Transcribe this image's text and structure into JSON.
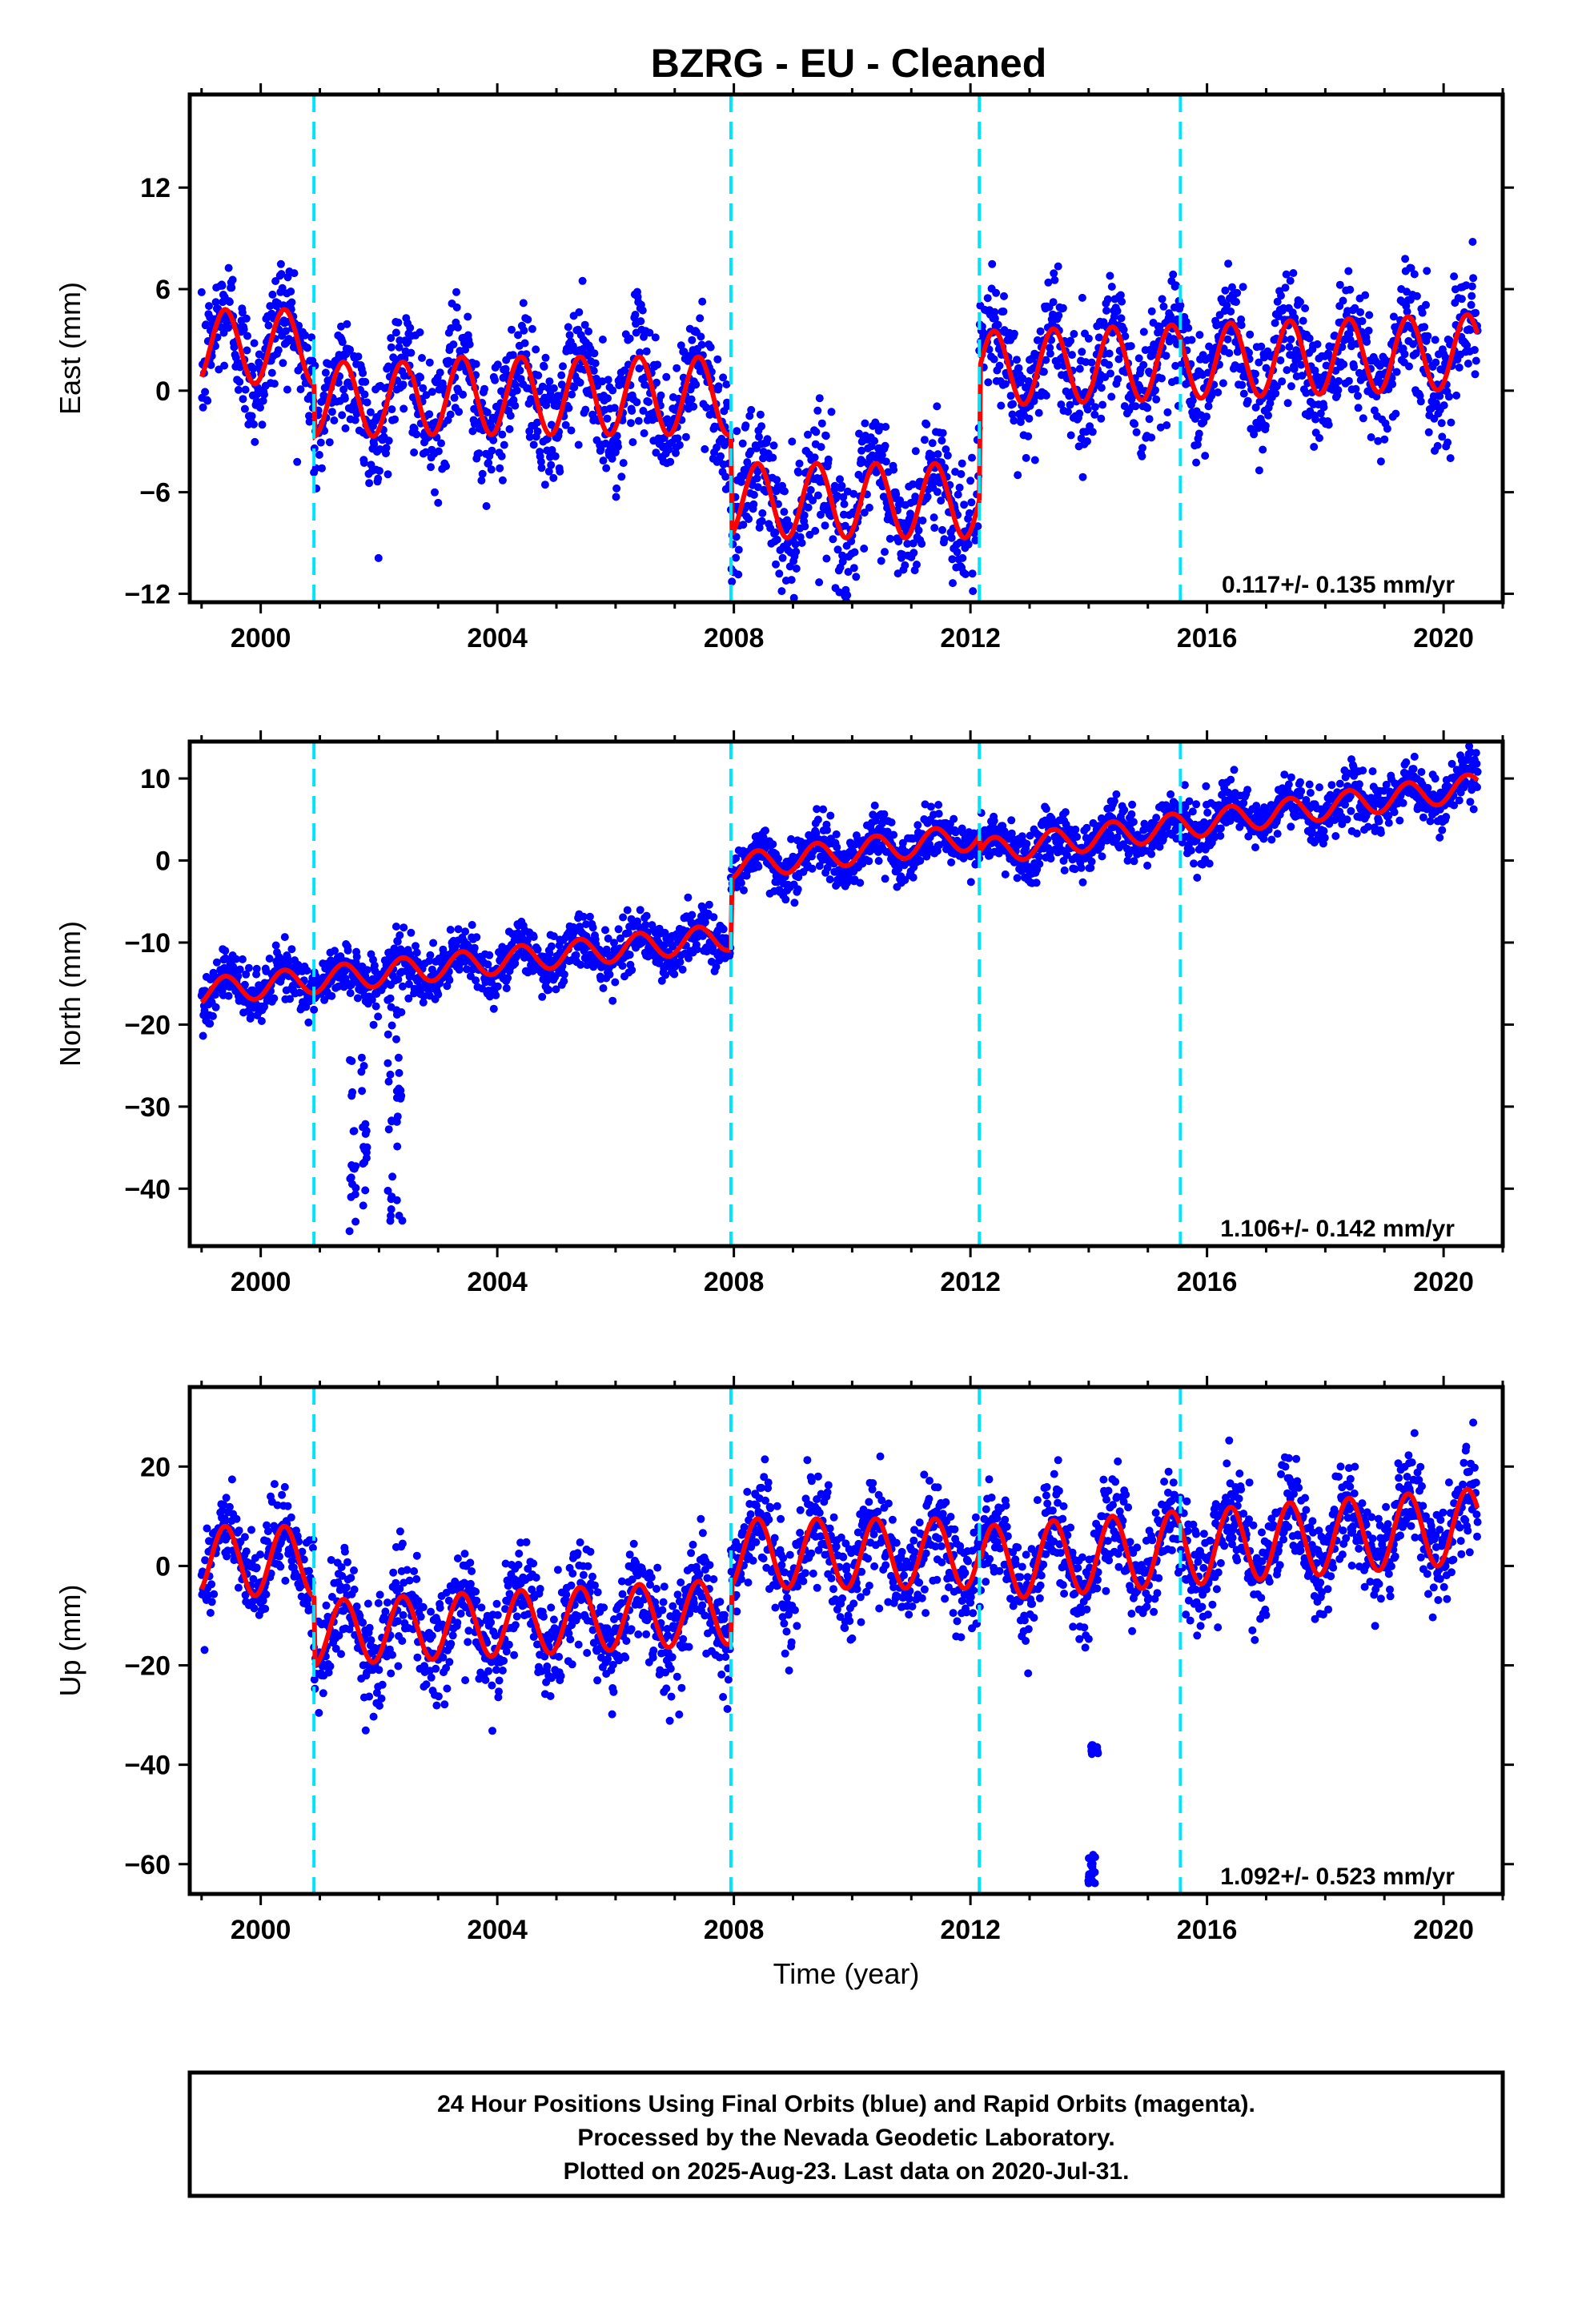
{
  "title": "BZRG  - EU - Cleaned",
  "chart_data": [
    {
      "type": "scatter",
      "ylabel": "East (mm)",
      "xlabel": "",
      "xlim": [
        1998.8,
        2021.0
      ],
      "ylim": [
        -12.5,
        17.5
      ],
      "xticks": [
        2000,
        2004,
        2008,
        2012,
        2016,
        2020
      ],
      "yticks": [
        -12,
        -6,
        0,
        6,
        12
      ],
      "rate": "0.117+/- 0.135 mm/yr",
      "breaks": [
        2000.9,
        2007.95,
        2012.15,
        2015.55
      ],
      "series": [
        {
          "color": "#0000ff",
          "values": "daily positions 1999.0 - 2020.58"
        },
        {
          "color": "#ff0000",
          "values": "model fit"
        }
      ],
      "model": {
        "segments": [
          {
            "start": 1999.0,
            "end": 2000.9,
            "offset": 2.6,
            "slope": 0.0,
            "amp": 2.2
          },
          {
            "start": 2000.9,
            "end": 2002.55,
            "offset": -0.5,
            "slope": 0.0,
            "amp": 2.2
          },
          {
            "start": 2002.55,
            "end": 2007.95,
            "offset": -0.3,
            "slope": 0.0,
            "amp": 2.3
          },
          {
            "start": 2007.95,
            "end": 2012.15,
            "offset": -6.5,
            "slope": 0.0,
            "amp": 2.2
          },
          {
            "start": 2012.15,
            "end": 2020.58,
            "offset": 1.3,
            "slope": 0.12,
            "amp": 2.2
          }
        ],
        "scatter": 1.8
      }
    },
    {
      "type": "scatter",
      "ylabel": "North (mm)",
      "xlabel": "",
      "xlim": [
        1998.8,
        2021.0
      ],
      "ylim": [
        -47,
        14.5
      ],
      "xticks": [
        2000,
        2004,
        2008,
        2012,
        2016,
        2020
      ],
      "yticks": [
        -40,
        -30,
        -20,
        -10,
        0,
        10
      ],
      "rate": "1.106+/- 0.142 mm/yr",
      "breaks": [
        2000.9,
        2007.95,
        2012.15,
        2015.55
      ],
      "series": [
        {
          "color": "#0000ff",
          "values": "daily positions 1999.0 - 2020.58"
        },
        {
          "color": "#ff0000",
          "values": "model fit"
        }
      ],
      "model": {
        "segments": [
          {
            "start": 1999.0,
            "end": 2007.95,
            "offset": -16.0,
            "slope": 0.75,
            "amp": 1.6,
            "t0": 1999.0
          },
          {
            "start": 2007.95,
            "end": 2012.15,
            "offset": -0.8,
            "slope": 0.9,
            "amp": 1.6,
            "t0": 2007.95
          },
          {
            "start": 2012.15,
            "end": 2020.58,
            "offset": 1.0,
            "slope": 0.95,
            "amp": 1.6,
            "t0": 2012.15
          }
        ],
        "scatter": 1.6,
        "outliers": [
          {
            "x": 2001.55,
            "ymin": -46,
            "ymax": -22
          },
          {
            "x": 2001.75,
            "ymin": -44,
            "ymax": -24
          },
          {
            "x": 2002.2,
            "ymin": -46,
            "ymax": -14
          },
          {
            "x": 2002.35,
            "ymin": -45,
            "ymax": -18
          }
        ]
      }
    },
    {
      "type": "scatter",
      "ylabel": "Up (mm)",
      "xlabel": "Time (year)",
      "xlim": [
        1998.8,
        2021.0
      ],
      "ylim": [
        -66,
        36
      ],
      "xticks": [
        2000,
        2004,
        2008,
        2012,
        2016,
        2020
      ],
      "yticks": [
        -60,
        -40,
        -20,
        0,
        20
      ],
      "rate": "1.092+/- 0.523 mm/yr",
      "breaks": [
        2000.9,
        2007.95,
        2012.15,
        2015.55
      ],
      "series": [
        {
          "color": "#0000ff",
          "values": "daily positions 1999.0 - 2020.58"
        },
        {
          "color": "#ff0000",
          "values": "model fit"
        }
      ],
      "model": {
        "segments": [
          {
            "start": 1999.0,
            "end": 2000.9,
            "offset": 1.0,
            "slope": 0.0,
            "amp": 7.0,
            "t0": 1999.0
          },
          {
            "start": 2000.9,
            "end": 2007.95,
            "offset": -13.5,
            "slope": 0.6,
            "amp": 6.5,
            "t0": 2000.9
          },
          {
            "start": 2007.95,
            "end": 2012.15,
            "offset": 2.5,
            "slope": 0.0,
            "amp": 7.0,
            "t0": 2007.95
          },
          {
            "start": 2012.15,
            "end": 2020.58,
            "offset": 0.5,
            "slope": 0.9,
            "amp": 7.5,
            "t0": 2012.15
          }
        ],
        "scatter": 5.0,
        "outliers": [
          {
            "x": 2014.05,
            "ymin": -64,
            "ymax": -58
          },
          {
            "x": 2014.1,
            "ymin": -38,
            "ymax": -36
          }
        ]
      }
    }
  ],
  "caption": [
    "24 Hour Positions Using Final Orbits (blue) and Rapid Orbits (magenta).",
    "Processed by the Nevada Geodetic Laboratory.",
    "Plotted on 2025-Aug-23. Last data on 2020-Jul-31."
  ]
}
